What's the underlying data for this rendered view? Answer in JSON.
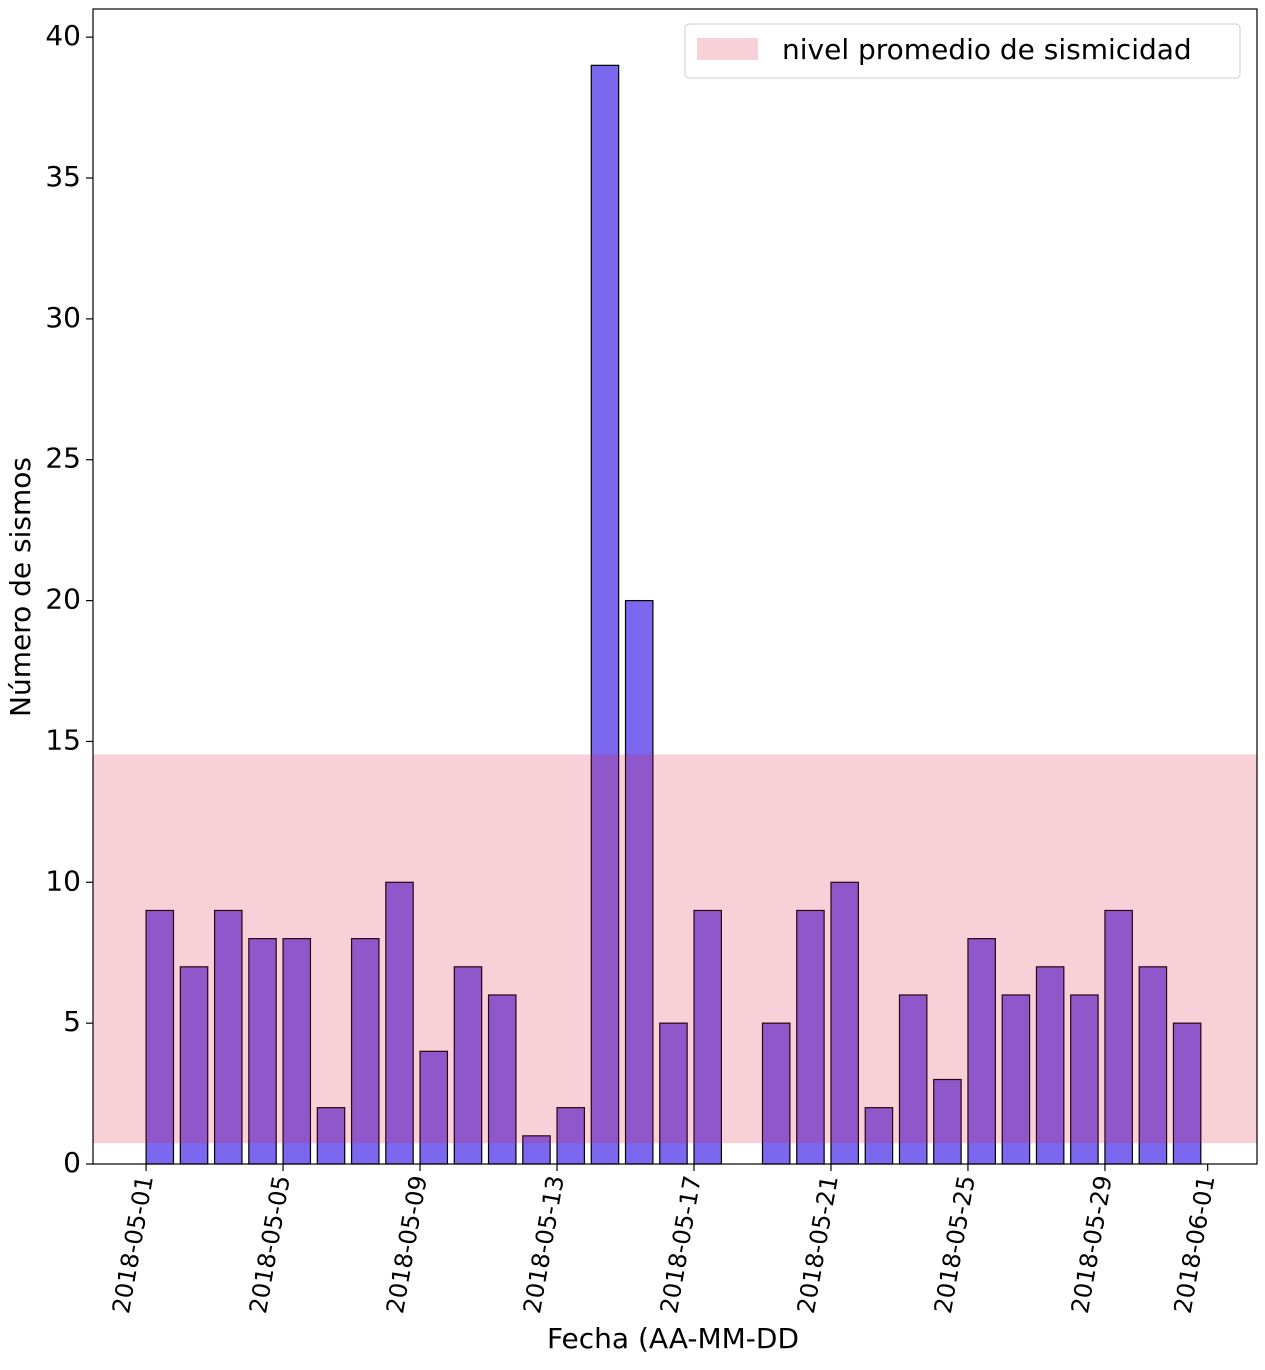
{
  "chart_data": {
    "type": "bar",
    "xlabel": "Fecha (AA-MM-DD",
    "ylabel": "Número de sismos",
    "x": [
      "2018-05-01",
      "2018-05-02",
      "2018-05-03",
      "2018-05-04",
      "2018-05-05",
      "2018-05-06",
      "2018-05-07",
      "2018-05-08",
      "2018-05-09",
      "2018-05-10",
      "2018-05-11",
      "2018-05-12",
      "2018-05-13",
      "2018-05-14",
      "2018-05-15",
      "2018-05-16",
      "2018-05-17",
      "2018-05-18",
      "2018-05-19",
      "2018-05-20",
      "2018-05-21",
      "2018-05-22",
      "2018-05-23",
      "2018-05-24",
      "2018-05-25",
      "2018-05-26",
      "2018-05-27",
      "2018-05-28",
      "2018-05-29",
      "2018-05-30",
      "2018-05-31"
    ],
    "values": [
      9,
      7,
      9,
      8,
      8,
      2,
      8,
      10,
      4,
      7,
      6,
      1,
      2,
      39,
      20,
      5,
      9,
      0,
      5,
      9,
      10,
      2,
      6,
      3,
      8,
      6,
      7,
      6,
      9,
      7,
      5
    ],
    "color": "mediumslateblue",
    "band": {
      "name": "nivel promedio de sismicidad",
      "range": [
        0.74,
        14.54
      ],
      "color": "crimson",
      "alpha": 0.2
    },
    "xlim": [
      "2018-04-29T10:48",
      "2018-06-02T10:34"
    ],
    "xticks": [
      "2018-05-01",
      "2018-05-05",
      "2018-05-09",
      "2018-05-13",
      "2018-05-17",
      "2018-05-21",
      "2018-05-25",
      "2018-05-29",
      "2018-06-01"
    ],
    "ylim": [
      0,
      41
    ],
    "yticks": [
      0,
      5,
      10,
      15,
      20,
      25,
      30,
      35,
      40
    ],
    "legend": "upper right"
  }
}
